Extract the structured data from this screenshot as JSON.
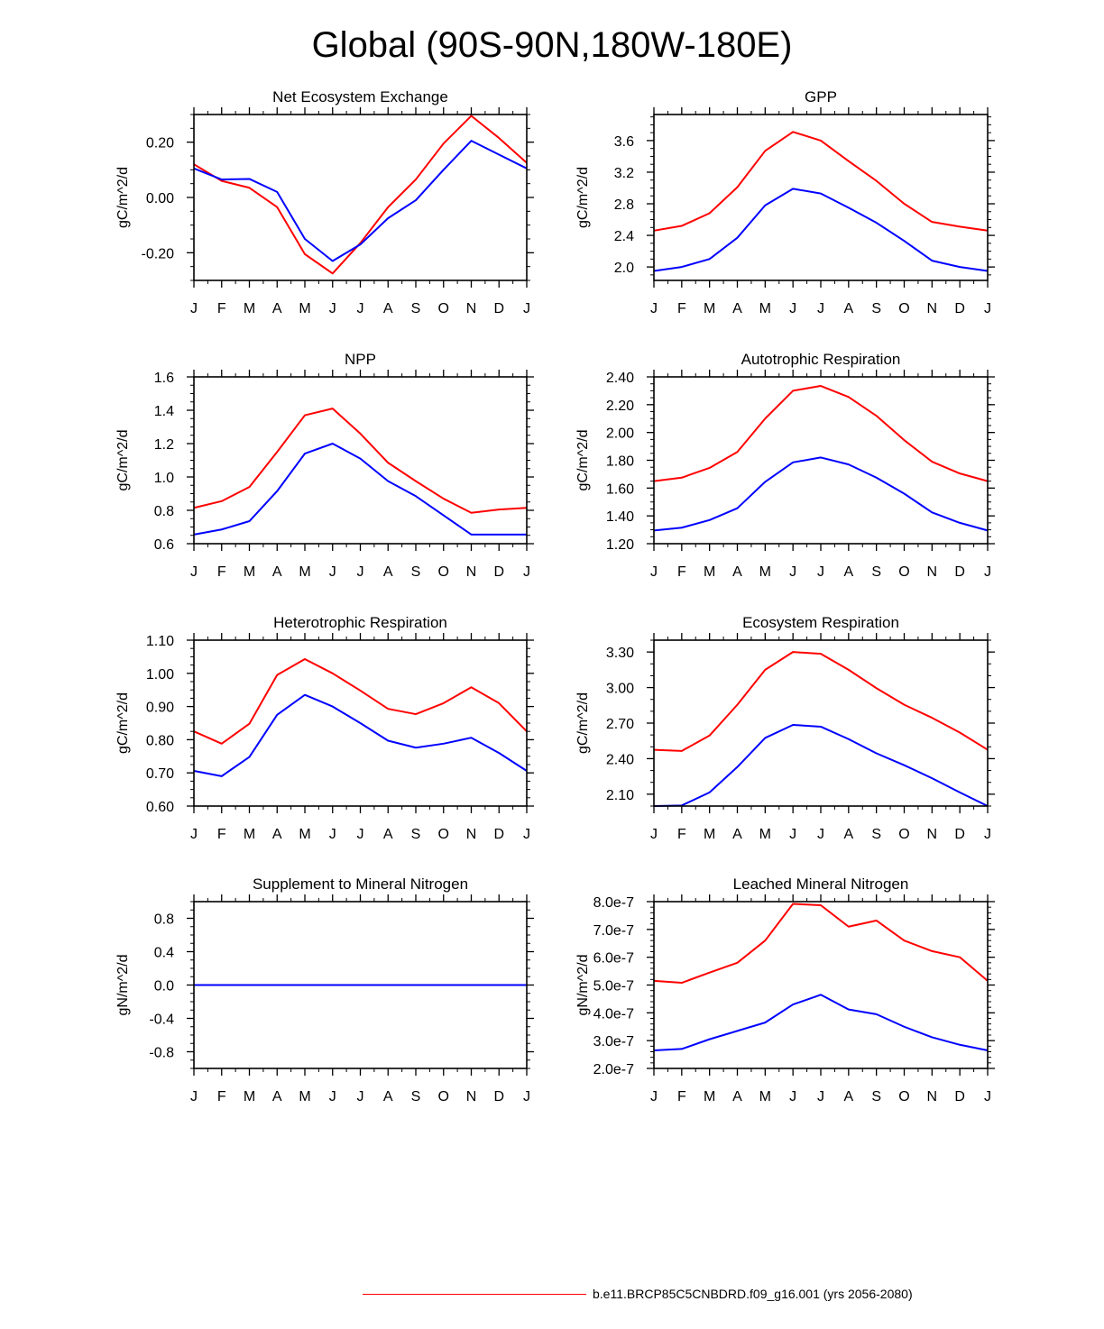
{
  "figure_title": "Global (90S-90N,180W-180E)",
  "legend": {
    "label": "b.e11.BRCP85C5CNBDRD.f09_g16.001 (yrs 2056-2080)",
    "color": "#ff0000"
  },
  "colors": {
    "series_a": "#ff0000",
    "series_b": "#0000ff"
  },
  "chart_data": [
    {
      "type": "line",
      "title": "Net Ecosystem Exchange",
      "ylabel": "gC/m^2/d",
      "categories": [
        "J",
        "F",
        "M",
        "A",
        "M",
        "J",
        "J",
        "A",
        "S",
        "O",
        "N",
        "D",
        "J"
      ],
      "ylim": [
        -0.3,
        0.3
      ],
      "ytick_values": [
        -0.2,
        0.0,
        0.2
      ],
      "ytick_labels": [
        "-0.20",
        "0.00",
        "0.20"
      ],
      "yminor": 0.05,
      "series": [
        {
          "name": "red",
          "color": "#ff0000",
          "values": [
            0.12,
            0.06,
            0.035,
            -0.035,
            -0.205,
            -0.275,
            -0.165,
            -0.035,
            0.065,
            0.195,
            0.295,
            0.215,
            0.125
          ]
        },
        {
          "name": "blue",
          "color": "#0000ff",
          "values": [
            0.105,
            0.065,
            0.067,
            0.02,
            -0.15,
            -0.23,
            -0.17,
            -0.075,
            -0.01,
            0.1,
            0.205,
            0.155,
            0.105
          ]
        }
      ]
    },
    {
      "type": "line",
      "title": "GPP",
      "ylabel": "gC/m^2/d",
      "categories": [
        "J",
        "F",
        "M",
        "A",
        "M",
        "J",
        "J",
        "A",
        "S",
        "O",
        "N",
        "D",
        "J"
      ],
      "ylim": [
        1.83,
        3.93
      ],
      "ytick_values": [
        2.0,
        2.4,
        2.8,
        3.2,
        3.6
      ],
      "ytick_labels": [
        "2.0",
        "2.4",
        "2.8",
        "3.2",
        "3.6"
      ],
      "yminor": 0.1,
      "series": [
        {
          "name": "red",
          "color": "#ff0000",
          "values": [
            2.46,
            2.52,
            2.68,
            3.01,
            3.47,
            3.71,
            3.6,
            3.34,
            3.09,
            2.8,
            2.57,
            2.51,
            2.46
          ]
        },
        {
          "name": "blue",
          "color": "#0000ff",
          "values": [
            1.95,
            2.0,
            2.1,
            2.37,
            2.78,
            2.99,
            2.93,
            2.75,
            2.56,
            2.33,
            2.08,
            2.0,
            1.95
          ]
        }
      ]
    },
    {
      "type": "line",
      "title": "NPP",
      "ylabel": "gC/m^2/d",
      "categories": [
        "J",
        "F",
        "M",
        "A",
        "M",
        "J",
        "J",
        "A",
        "S",
        "O",
        "N",
        "D",
        "J"
      ],
      "ylim": [
        0.6,
        1.6
      ],
      "ytick_values": [
        0.6,
        0.8,
        1.0,
        1.2,
        1.4,
        1.6
      ],
      "ytick_labels": [
        "0.6",
        "0.8",
        "1.0",
        "1.2",
        "1.4",
        "1.6"
      ],
      "yminor": 0.05,
      "series": [
        {
          "name": "red",
          "color": "#ff0000",
          "values": [
            0.815,
            0.855,
            0.94,
            1.15,
            1.37,
            1.41,
            1.26,
            1.085,
            0.975,
            0.87,
            0.785,
            0.805,
            0.815
          ]
        },
        {
          "name": "blue",
          "color": "#0000ff",
          "values": [
            0.655,
            0.685,
            0.735,
            0.915,
            1.14,
            1.2,
            1.11,
            0.975,
            0.885,
            0.77,
            0.655,
            0.655,
            0.655
          ]
        }
      ]
    },
    {
      "type": "line",
      "title": "Autotrophic Respiration",
      "ylabel": "gC/m^2/d",
      "categories": [
        "J",
        "F",
        "M",
        "A",
        "M",
        "J",
        "J",
        "A",
        "S",
        "O",
        "N",
        "D",
        "J"
      ],
      "ylim": [
        1.2,
        2.4
      ],
      "ytick_values": [
        1.2,
        1.4,
        1.6,
        1.8,
        2.0,
        2.2,
        2.4
      ],
      "ytick_labels": [
        "1.20",
        "1.40",
        "1.60",
        "1.80",
        "2.00",
        "2.20",
        "2.40"
      ],
      "yminor": 0.05,
      "series": [
        {
          "name": "red",
          "color": "#ff0000",
          "values": [
            1.65,
            1.675,
            1.745,
            1.86,
            2.1,
            2.3,
            2.335,
            2.255,
            2.12,
            1.945,
            1.79,
            1.705,
            1.65
          ]
        },
        {
          "name": "blue",
          "color": "#0000ff",
          "values": [
            1.295,
            1.315,
            1.37,
            1.455,
            1.645,
            1.785,
            1.82,
            1.77,
            1.675,
            1.56,
            1.425,
            1.35,
            1.295
          ]
        }
      ]
    },
    {
      "type": "line",
      "title": "Heterotrophic Respiration",
      "ylabel": "gC/m^2/d",
      "categories": [
        "J",
        "F",
        "M",
        "A",
        "M",
        "J",
        "J",
        "A",
        "S",
        "O",
        "N",
        "D",
        "J"
      ],
      "ylim": [
        0.6,
        1.1
      ],
      "ytick_values": [
        0.6,
        0.7,
        0.8,
        0.9,
        1.0,
        1.1
      ],
      "ytick_labels": [
        "0.60",
        "0.70",
        "0.80",
        "0.90",
        "1.00",
        "1.10"
      ],
      "yminor": 0.025,
      "series": [
        {
          "name": "red",
          "color": "#ff0000",
          "values": [
            0.825,
            0.788,
            0.848,
            0.995,
            1.043,
            1.0,
            0.948,
            0.893,
            0.877,
            0.91,
            0.958,
            0.91,
            0.825
          ]
        },
        {
          "name": "blue",
          "color": "#0000ff",
          "values": [
            0.706,
            0.69,
            0.748,
            0.875,
            0.935,
            0.9,
            0.85,
            0.797,
            0.776,
            0.788,
            0.806,
            0.76,
            0.706
          ]
        }
      ]
    },
    {
      "type": "line",
      "title": "Ecosystem Respiration",
      "ylabel": "gC/m^2/d",
      "categories": [
        "J",
        "F",
        "M",
        "A",
        "M",
        "J",
        "J",
        "A",
        "S",
        "O",
        "N",
        "D",
        "J"
      ],
      "ylim": [
        2.0,
        3.4
      ],
      "ytick_values": [
        2.1,
        2.4,
        2.7,
        3.0,
        3.3
      ],
      "ytick_labels": [
        "2.10",
        "2.40",
        "2.70",
        "3.00",
        "3.30"
      ],
      "yminor": 0.1,
      "series": [
        {
          "name": "red",
          "color": "#ff0000",
          "values": [
            2.475,
            2.465,
            2.595,
            2.855,
            3.15,
            3.3,
            3.285,
            3.15,
            2.995,
            2.855,
            2.745,
            2.62,
            2.475
          ]
        },
        {
          "name": "blue",
          "color": "#0000ff",
          "values": [
            2.0,
            2.005,
            2.115,
            2.33,
            2.575,
            2.685,
            2.67,
            2.565,
            2.445,
            2.345,
            2.235,
            2.115,
            2.0
          ]
        }
      ]
    },
    {
      "type": "line",
      "title": "Supplement to Mineral Nitrogen",
      "ylabel": "gN/m^2/d",
      "categories": [
        "J",
        "F",
        "M",
        "A",
        "M",
        "J",
        "J",
        "A",
        "S",
        "O",
        "N",
        "D",
        "J"
      ],
      "ylim": [
        -1.0,
        1.0
      ],
      "ytick_values": [
        -0.8,
        -0.4,
        0.0,
        0.4,
        0.8
      ],
      "ytick_labels": [
        "-0.8",
        "-0.4",
        "0.0",
        "0.4",
        "0.8"
      ],
      "yminor": 0.1,
      "series": [
        {
          "name": "red",
          "color": "#ff0000",
          "values": [
            0,
            0,
            0,
            0,
            0,
            0,
            0,
            0,
            0,
            0,
            0,
            0,
            0
          ]
        },
        {
          "name": "blue",
          "color": "#0000ff",
          "values": [
            0,
            0,
            0,
            0,
            0,
            0,
            0,
            0,
            0,
            0,
            0,
            0,
            0
          ]
        }
      ]
    },
    {
      "type": "line",
      "title": "Leached Mineral Nitrogen",
      "ylabel": "gN/m^2/d",
      "categories": [
        "J",
        "F",
        "M",
        "A",
        "M",
        "J",
        "J",
        "A",
        "S",
        "O",
        "N",
        "D",
        "J"
      ],
      "ylim": [
        2e-07,
        8e-07
      ],
      "ytick_values": [
        2e-07,
        3e-07,
        4e-07,
        5e-07,
        6e-07,
        7e-07,
        8e-07
      ],
      "ytick_labels": [
        "2.0e-7",
        "3.0e-7",
        "4.0e-7",
        "5.0e-7",
        "6.0e-7",
        "7.0e-7",
        "8.0e-7"
      ],
      "yminor": 2e-08,
      "series": [
        {
          "name": "red",
          "color": "#ff0000",
          "values": [
            5.15e-07,
            5.08e-07,
            5.45e-07,
            5.8e-07,
            6.6e-07,
            7.92e-07,
            7.87e-07,
            7.1e-07,
            7.32e-07,
            6.6e-07,
            6.22e-07,
            6e-07,
            5.15e-07
          ]
        },
        {
          "name": "blue",
          "color": "#0000ff",
          "values": [
            2.65e-07,
            2.7e-07,
            3.05e-07,
            3.35e-07,
            3.65e-07,
            4.3e-07,
            4.65e-07,
            4.12e-07,
            3.95e-07,
            3.5e-07,
            3.12e-07,
            2.85e-07,
            2.65e-07
          ]
        }
      ]
    }
  ]
}
